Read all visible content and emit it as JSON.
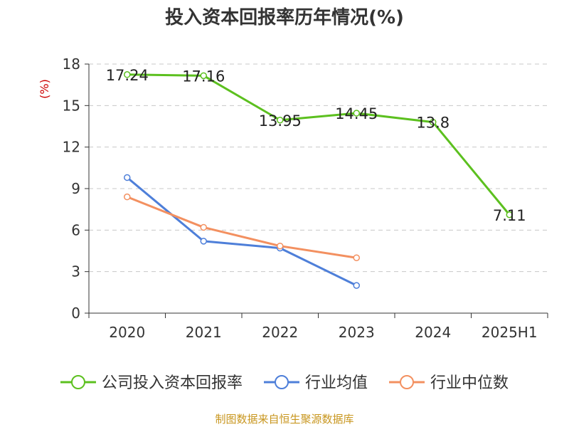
{
  "chart_data": {
    "type": "line",
    "title": "投入资本回报率历年情况(%)",
    "ylabel": "(%)",
    "categories": [
      "2020",
      "2021",
      "2022",
      "2023",
      "2024",
      "2025H1"
    ],
    "ylim": [
      0,
      18
    ],
    "yticks": [
      0,
      3,
      6,
      9,
      12,
      15,
      18
    ],
    "grid": true,
    "legend_position": "bottom",
    "series": [
      {
        "name": "公司投入资本回报率",
        "color": "#5cc01f",
        "values": [
          17.24,
          17.16,
          13.95,
          14.45,
          13.8,
          7.11
        ],
        "labels": [
          "17.24",
          "17.16",
          "13.95",
          "14.45",
          "13.8",
          "7.11"
        ]
      },
      {
        "name": "行业均值",
        "color": "#4e7fd9",
        "values": [
          9.8,
          5.2,
          4.7,
          2.0,
          null,
          null
        ]
      },
      {
        "name": "行业中位数",
        "color": "#f39060",
        "values": [
          8.4,
          6.2,
          4.85,
          4.0,
          null,
          null
        ]
      }
    ],
    "source": "制图数据来自恒生聚源数据库"
  }
}
